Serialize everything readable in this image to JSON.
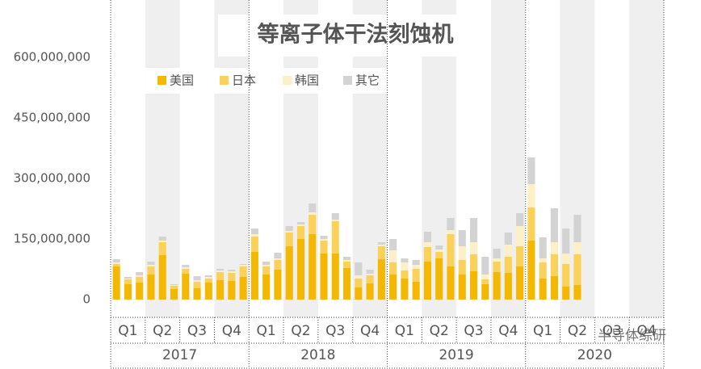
{
  "chart_data": {
    "type": "stacked_bar",
    "title": "等离子体干法刻蚀机",
    "categories": [
      null,
      null,
      null,
      null,
      null,
      null,
      null,
      null,
      null,
      null,
      null,
      null,
      null,
      null,
      null,
      null,
      null,
      null,
      null,
      null,
      null,
      null,
      null,
      null,
      null,
      null,
      null,
      null,
      null,
      null,
      null,
      null,
      null,
      null,
      null,
      null,
      null,
      null,
      null,
      null,
      null,
      null,
      null,
      null,
      null,
      null,
      null,
      null
    ],
    "quarter_labels": [
      "Q1",
      "Q2",
      "Q3",
      "Q4"
    ],
    "years": [
      "2017",
      "2018",
      "2019",
      "2020"
    ],
    "series": [
      {
        "name": "美国",
        "color": "#f5b800",
        "values": [
          82000000,
          38000000,
          42000000,
          62000000,
          110000000,
          26000000,
          64000000,
          28000000,
          42000000,
          48000000,
          46000000,
          56000000,
          118000000,
          62000000,
          74000000,
          132000000,
          150000000,
          162000000,
          114000000,
          114000000,
          78000000,
          30000000,
          40000000,
          100000000,
          62000000,
          52000000,
          44000000,
          94000000,
          102000000,
          82000000,
          62000000,
          70000000,
          38000000,
          68000000,
          66000000,
          82000000,
          146000000,
          52000000,
          58000000,
          32000000,
          36000000,
          null,
          null,
          null,
          null,
          null,
          null,
          null
        ]
      },
      {
        "name": "日本",
        "color": "#fad25a",
        "values": [
          6000000,
          12000000,
          14000000,
          20000000,
          32000000,
          8000000,
          12000000,
          16000000,
          10000000,
          20000000,
          20000000,
          26000000,
          38000000,
          20000000,
          24000000,
          34000000,
          32000000,
          48000000,
          32000000,
          80000000,
          16000000,
          22000000,
          20000000,
          32000000,
          30000000,
          20000000,
          32000000,
          36000000,
          16000000,
          80000000,
          36000000,
          42000000,
          12000000,
          26000000,
          40000000,
          50000000,
          82000000,
          40000000,
          54000000,
          56000000,
          76000000,
          null,
          null,
          null,
          null,
          null,
          null,
          null
        ]
      },
      {
        "name": "韩国",
        "color": "#fdefc6",
        "values": [
          4000000,
          2000000,
          4000000,
          4000000,
          4000000,
          2000000,
          4000000,
          4000000,
          4000000,
          4000000,
          4000000,
          4000000,
          6000000,
          4000000,
          4000000,
          4000000,
          4000000,
          6000000,
          4000000,
          4000000,
          4000000,
          8000000,
          4000000,
          4000000,
          30000000,
          20000000,
          10000000,
          12000000,
          6000000,
          10000000,
          34000000,
          30000000,
          12000000,
          8000000,
          30000000,
          50000000,
          58000000,
          10000000,
          30000000,
          26000000,
          30000000,
          null,
          null,
          null,
          null,
          null,
          null,
          null
        ]
      },
      {
        "name": "其它",
        "color": "#d3d3d3",
        "values": [
          8000000,
          4000000,
          8000000,
          8000000,
          10000000,
          2000000,
          6000000,
          10000000,
          4000000,
          4000000,
          4000000,
          2000000,
          14000000,
          8000000,
          14000000,
          12000000,
          6000000,
          22000000,
          8000000,
          16000000,
          8000000,
          32000000,
          10000000,
          6000000,
          28000000,
          10000000,
          12000000,
          26000000,
          10000000,
          30000000,
          40000000,
          60000000,
          44000000,
          24000000,
          30000000,
          32000000,
          66000000,
          52000000,
          84000000,
          62000000,
          68000000,
          null,
          null,
          null,
          null,
          null,
          null,
          null
        ]
      }
    ],
    "ylim": [
      0,
      740000000
    ],
    "yticks": [
      0,
      {
        "value": 150000000,
        "label": "150,000,000"
      },
      {
        "value": 300000000,
        "label": "300,000,000"
      },
      {
        "value": 450000000,
        "label": "450,000,000"
      },
      {
        "value": 600000000,
        "label": "600,000,000"
      }
    ],
    "grid": false,
    "legend": "top-left",
    "watermark": "半导体综研"
  }
}
